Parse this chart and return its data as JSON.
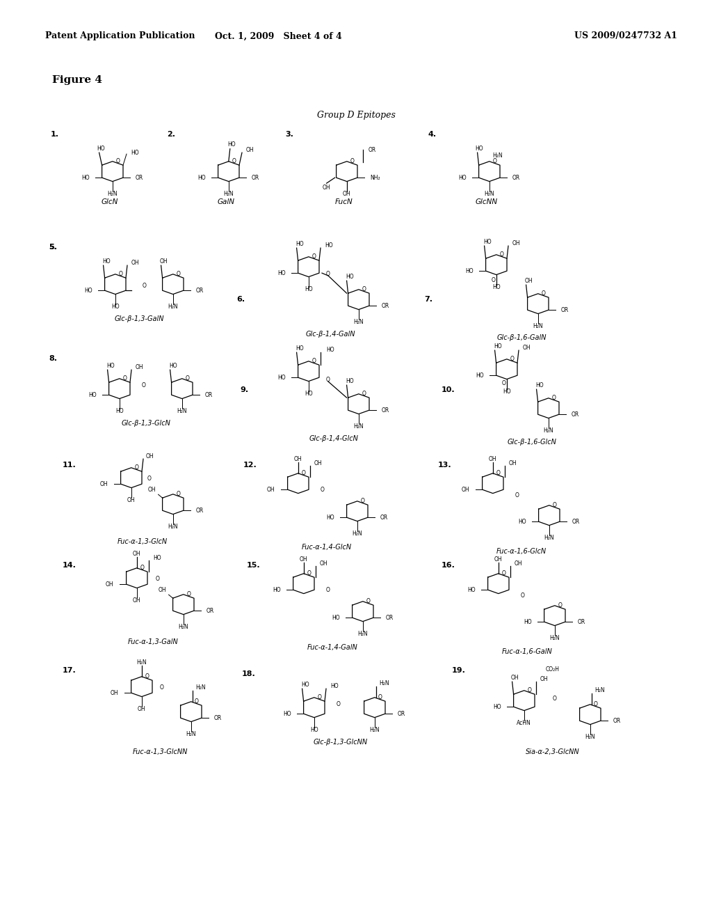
{
  "header_left": "Patent Application Publication",
  "header_center": "Oct. 1, 2009   Sheet 4 of 4",
  "header_right": "US 2009/0247732 A1",
  "figure_label": "Figure 4",
  "group_label": "Group D Epitopes",
  "background_color": "#ffffff",
  "compounds": [
    {
      "num": "1.",
      "label": "GlcN",
      "col": 0,
      "row": 0
    },
    {
      "num": "2.",
      "label": "GalN",
      "col": 1,
      "row": 0
    },
    {
      "num": "3.",
      "label": "FucN",
      "col": 2,
      "row": 0
    },
    {
      "num": "4.",
      "label": "GlcNN",
      "col": 3,
      "row": 0
    },
    {
      "num": "5.",
      "label": "Glc-β-1,3-GalN",
      "col": 0,
      "row": 1
    },
    {
      "num": "6.",
      "label": "Glc-β-1,4-GalN",
      "col": 1,
      "row": 1
    },
    {
      "num": "7.",
      "label": "Glc-β-1,6-GalN",
      "col": 2,
      "row": 1
    },
    {
      "num": "8.",
      "label": "Glc-β-1,3-GlcN",
      "col": 0,
      "row": 2
    },
    {
      "num": "9.",
      "label": "Glc-β-1,4-GlcN",
      "col": 1,
      "row": 2
    },
    {
      "num": "10.",
      "label": "Glc-β-1,6-GlcN",
      "col": 2,
      "row": 2
    },
    {
      "num": "11.",
      "label": "Fuc-α-1,3-GlcN",
      "col": 0,
      "row": 3
    },
    {
      "num": "12.",
      "label": "Fuc-α-1,4-GlcN",
      "col": 1,
      "row": 3
    },
    {
      "num": "13.",
      "label": "Fuc-α-1,6-GlcN",
      "col": 2,
      "row": 3
    },
    {
      "num": "14.",
      "label": "Fuc-α-1,3-GalN",
      "col": 0,
      "row": 4
    },
    {
      "num": "15.",
      "label": "Fuc-α-1,4-GalN",
      "col": 1,
      "row": 4
    },
    {
      "num": "16.",
      "label": "Fuc-α-1,6-GalN",
      "col": 2,
      "row": 4
    },
    {
      "num": "17.",
      "label": "Fuc-α-1,3-GlcNN",
      "col": 0,
      "row": 5
    },
    {
      "num": "18.",
      "label": "Glc-β-1,3-GlcNN",
      "col": 1,
      "row": 5
    },
    {
      "num": "19.",
      "label": "Sia-α-2,3-GlcNN",
      "col": 2,
      "row": 5
    }
  ]
}
